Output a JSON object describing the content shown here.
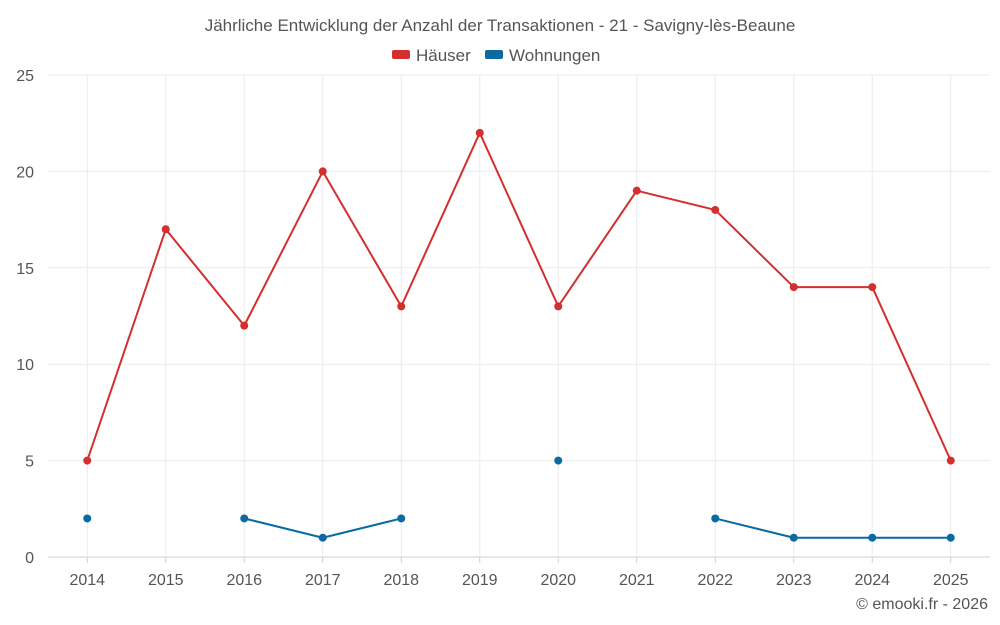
{
  "chart_data": {
    "type": "line",
    "title": "Jährliche Entwicklung der Anzahl der Transaktionen - 21 - Savigny-lès-Beaune",
    "categories": [
      "2014",
      "2015",
      "2016",
      "2017",
      "2018",
      "2019",
      "2020",
      "2021",
      "2022",
      "2023",
      "2024",
      "2025"
    ],
    "ylim": [
      0,
      25
    ],
    "yticks": [
      0,
      5,
      10,
      15,
      20,
      25
    ],
    "grid": true,
    "legend_position": "top-center",
    "series": [
      {
        "name": "Häuser",
        "color": "#d32f2f",
        "values": [
          5,
          17,
          12,
          20,
          13,
          22,
          13,
          19,
          18,
          14,
          14,
          5
        ]
      },
      {
        "name": "Wohnungen",
        "color": "#0a6aa1",
        "values": [
          2,
          null,
          2,
          1,
          2,
          null,
          5,
          null,
          2,
          1,
          1,
          1
        ]
      }
    ],
    "credit": "© emooki.fr - 2026"
  }
}
